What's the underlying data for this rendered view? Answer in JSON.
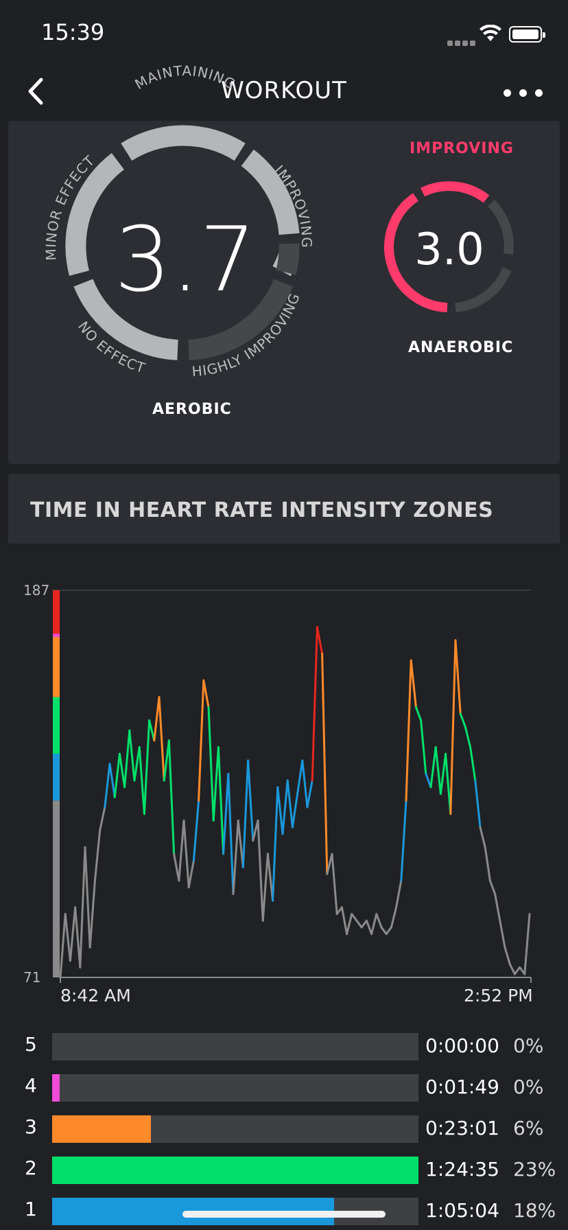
{
  "status": {
    "time": "15:39"
  },
  "nav": {
    "title": "WORKOUT"
  },
  "training_effect": {
    "aerobic": {
      "value": "3.7",
      "label": "AEROBIC",
      "ring_labels": [
        "MAINTAINING",
        "IMPROVING",
        "HIGHLY IMPROVING",
        "NO EFFECT",
        "MINOR EFFECT"
      ]
    },
    "anaerobic": {
      "value": "3.0",
      "label": "ANAEROBIC",
      "status": "IMPROVING",
      "accent": "#ff3b6c"
    }
  },
  "zones_section": {
    "title": "TIME IN HEART RATE INTENSITY ZONES"
  },
  "chart": {
    "y_top": "187",
    "y_bottom": "71",
    "x_start": "8:42 AM",
    "x_end": "2:52 PM"
  },
  "chart_data": {
    "type": "line",
    "ylim": [
      71,
      187
    ],
    "x_range_labels": [
      "8:42 AM",
      "2:52 PM"
    ],
    "grid": true,
    "zone_colors": {
      "1": "#1a98dc",
      "2": "#00e06a",
      "3": "#ff8a2a",
      "4": "#f04ad8",
      "5": "#e8261e",
      "below": "#8a8a8a"
    },
    "zone_thresholds_bpm": [
      71,
      124,
      138,
      155,
      173,
      187
    ],
    "series": [
      {
        "values": [
          71,
          90,
          76,
          92,
          74,
          110,
          80,
          100,
          115,
          122,
          135,
          125,
          138,
          128,
          145,
          130,
          140,
          120,
          148,
          142,
          155,
          130,
          142,
          108,
          100,
          118,
          98,
          106,
          124,
          160,
          152,
          118,
          140,
          108,
          132,
          96,
          118,
          104,
          136,
          112,
          118,
          88,
          108,
          94,
          128,
          114,
          130,
          116,
          126,
          136,
          122,
          130,
          176,
          168,
          102,
          108,
          90,
          92,
          84,
          90,
          88,
          86,
          88,
          84,
          90,
          86,
          84,
          86,
          92,
          100,
          124,
          166,
          152,
          148,
          132,
          128,
          140,
          126,
          138,
          120,
          172,
          150,
          146,
          140,
          130,
          116,
          110,
          100,
          96,
          88,
          80,
          75,
          72,
          74,
          72,
          90
        ]
      }
    ],
    "zones": [
      {
        "zone": "5",
        "duration": "0:00:00",
        "percent": "0%",
        "fill": 0.0,
        "color": "#e8261e"
      },
      {
        "zone": "4",
        "duration": "0:01:49",
        "percent": "0%",
        "fill": 0.02,
        "color": "#f04ad8"
      },
      {
        "zone": "3",
        "duration": "0:23:01",
        "percent": "6%",
        "fill": 0.27,
        "color": "#ff8a2a"
      },
      {
        "zone": "2",
        "duration": "1:24:35",
        "percent": "23%",
        "fill": 1.0,
        "color": "#00e06a"
      },
      {
        "zone": "1",
        "duration": "1:05:04",
        "percent": "18%",
        "fill": 0.77,
        "color": "#1a98dc"
      }
    ]
  }
}
